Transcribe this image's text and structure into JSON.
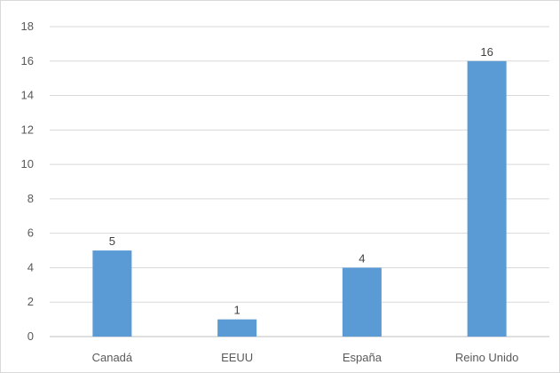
{
  "chart_data": {
    "type": "bar",
    "title": "",
    "xlabel": "",
    "ylabel": "",
    "categories": [
      "Canadá",
      "EEUU",
      "España",
      "Reino Unido"
    ],
    "values": [
      5,
      1,
      4,
      16
    ],
    "data_labels": [
      "5",
      "1",
      "4",
      "16"
    ],
    "ylim": [
      0,
      18
    ],
    "y_ticks": [
      0,
      2,
      4,
      6,
      8,
      10,
      12,
      14,
      16,
      18
    ],
    "grid": true,
    "legend": "none",
    "bar_color": "#5b9bd5",
    "grid_color": "#d9d9d9",
    "axis_color": "#bfbfbf",
    "tick_label_color": "#595959"
  }
}
